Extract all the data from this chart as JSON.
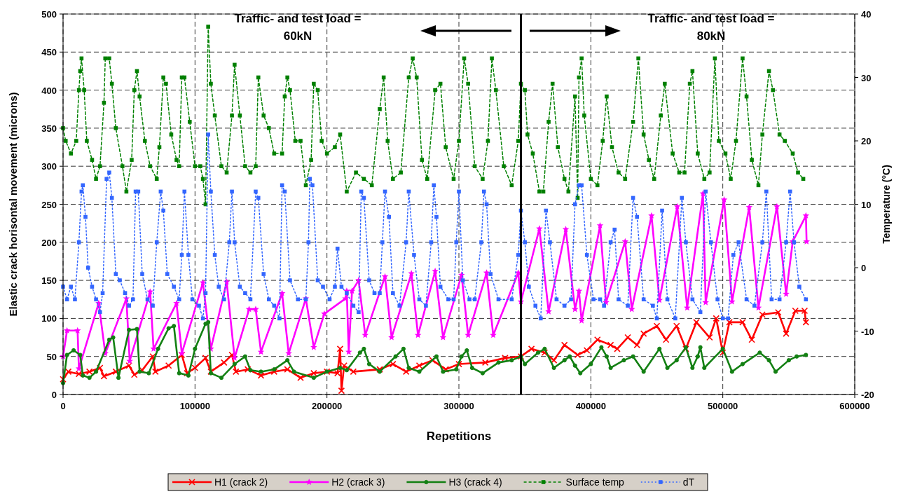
{
  "chart_data": {
    "type": "line",
    "xlabel": "Repetitions",
    "ylabel": "Elastic crack horisontal movement (microns)",
    "y2label": "Temperature (°C)",
    "xlim": [
      0,
      600000
    ],
    "xticks": [
      0,
      100000,
      200000,
      300000,
      400000,
      500000,
      600000
    ],
    "ylim": [
      0,
      500
    ],
    "yticks": [
      0,
      50,
      100,
      150,
      200,
      250,
      300,
      350,
      400,
      450,
      500
    ],
    "y2lim": [
      -20,
      40
    ],
    "y2ticks": [
      -20,
      -10,
      0,
      10,
      20,
      30,
      40
    ],
    "grid": true,
    "legend": "bottom",
    "ref_lines": [
      {
        "axis": "x",
        "value": 347000,
        "color": "#000000",
        "line_style": "solid"
      }
    ],
    "annotations": [
      "Traffic- and test load =\n60kN",
      "Traffic- and test load =\n80kN"
    ],
    "series": [
      {
        "name": "H1 (crack 2)",
        "color": "#ff0000",
        "marker": "cross",
        "line_style": "solid",
        "x": [
          0,
          4000,
          12000,
          20000,
          28000,
          31000,
          40000,
          50000,
          54000,
          60000,
          68000,
          70000,
          80000,
          90000,
          94000,
          100000,
          108000,
          112000,
          122000,
          128000,
          131000,
          140000,
          150000,
          160000,
          170000,
          180000,
          190000,
          200000,
          208000,
          210000,
          211000,
          213000,
          220000,
          240000,
          250000,
          260000,
          270000,
          280000,
          290000,
          300000,
          320000,
          335000,
          347000,
          355000,
          365000,
          372000,
          380000,
          390000,
          397000,
          405000,
          415000,
          420000,
          428000,
          435000,
          440000,
          450000,
          457000,
          465000,
          472000,
          480000,
          490000,
          495000,
          500000,
          505000,
          515000,
          522000,
          530000,
          542000,
          548000,
          555000,
          562000,
          563000
        ],
        "values": [
          20,
          30,
          27,
          30,
          35,
          24,
          30,
          38,
          26,
          32,
          50,
          30,
          38,
          52,
          28,
          35,
          48,
          30,
          42,
          52,
          30,
          33,
          25,
          30,
          33,
          22,
          28,
          30,
          28,
          60,
          5,
          38,
          30,
          33,
          40,
          30,
          38,
          45,
          33,
          40,
          42,
          48,
          50,
          60,
          55,
          45,
          65,
          52,
          58,
          72,
          65,
          60,
          75,
          65,
          80,
          90,
          72,
          90,
          60,
          95,
          75,
          100,
          55,
          95,
          95,
          72,
          105,
          108,
          80,
          110,
          110,
          95
        ]
      },
      {
        "name": "H2 (crack 3)",
        "color": "#ff00ff",
        "marker": "star",
        "line_style": "solid",
        "x": [
          0,
          3000,
          11000,
          12000,
          27000,
          32000,
          48000,
          50500,
          66000,
          68600,
          86000,
          90000,
          106000,
          112000,
          124000,
          130000,
          141000,
          146000,
          150000,
          166000,
          171000,
          184000,
          190000,
          198000,
          214000,
          215000,
          216500,
          219000,
          224000,
          229000,
          244000,
          249000,
          264000,
          269000,
          282000,
          288000,
          302000,
          307000,
          321000,
          326000,
          345000,
          347000,
          361000,
          368000,
          381000,
          388000,
          391000,
          393000,
          407000,
          411500,
          426000,
          431000,
          446000,
          452000,
          465500,
          473000,
          485000,
          487000,
          501000,
          507000,
          520000,
          527000,
          541000,
          548000,
          553000,
          563000,
          563500
        ],
        "values": [
          50,
          84,
          84,
          34,
          120,
          54,
          126,
          44,
          135,
          60,
          120,
          54,
          147,
          60,
          148,
          48,
          112,
          112,
          56,
          133,
          54,
          126,
          62,
          106,
          126,
          136,
          56,
          136,
          150,
          78,
          155,
          75,
          159,
          78,
          162,
          75,
          157,
          78,
          160,
          78,
          160,
          122,
          218,
          109,
          217,
          112,
          136,
          97,
          222,
          121,
          201,
          112,
          235,
          124,
          247,
          114,
          264,
          121,
          256,
          122,
          246,
          114,
          247,
          132,
          201,
          235,
          201
        ]
      },
      {
        "name": "H3 (crack 4)",
        "color": "#138013",
        "marker": "circle",
        "line_style": "solid",
        "x": [
          0,
          3000,
          8000,
          13000,
          15000,
          20000,
          25000,
          35000,
          38000,
          42000,
          50000,
          56000,
          58000,
          65000,
          72000,
          80000,
          84000,
          88000,
          95000,
          100000,
          108000,
          110000,
          112000,
          120000,
          130000,
          138000,
          142000,
          150000,
          160000,
          170000,
          175000,
          190000,
          200000,
          210000,
          215000,
          225000,
          228000,
          232000,
          240000,
          252000,
          258000,
          262000,
          270000,
          283000,
          288000,
          298000,
          302000,
          306000,
          310000,
          318000,
          330000,
          340000,
          347000,
          350000,
          360000,
          365000,
          372000,
          380000,
          384000,
          388000,
          392000,
          400000,
          408000,
          412000,
          415000,
          425000,
          432000,
          440000,
          452000,
          458000,
          465000,
          472000,
          477000,
          481000,
          483000,
          486000,
          500000,
          507000,
          515000,
          528000,
          535000,
          540000,
          550000,
          556000,
          563000
        ],
        "values": [
          15,
          52,
          58,
          52,
          25,
          22,
          30,
          72,
          75,
          22,
          85,
          86,
          30,
          28,
          60,
          87,
          90,
          28,
          25,
          60,
          93,
          95,
          28,
          22,
          40,
          50,
          32,
          30,
          33,
          45,
          30,
          22,
          30,
          35,
          32,
          55,
          60,
          40,
          30,
          50,
          60,
          35,
          30,
          50,
          30,
          33,
          50,
          58,
          35,
          28,
          42,
          45,
          50,
          40,
          55,
          60,
          35,
          45,
          50,
          38,
          28,
          40,
          62,
          50,
          35,
          45,
          50,
          30,
          60,
          35,
          45,
          62,
          35,
          50,
          62,
          35,
          60,
          30,
          40,
          55,
          45,
          30,
          45,
          50,
          52
        ]
      },
      {
        "name": "Surface temp",
        "color": "#008000",
        "marker": "square",
        "line_style": "dashed",
        "axis": "y2",
        "x": [
          0,
          2000,
          6000,
          10000,
          12000,
          13000,
          14000,
          16000,
          18000,
          22000,
          25000,
          28000,
          31000,
          32000,
          35000,
          37000,
          40000,
          45000,
          48000,
          52000,
          54000,
          56000,
          58000,
          62000,
          66000,
          71000,
          73000,
          76000,
          78000,
          82000,
          86000,
          88000,
          90000,
          92000,
          96000,
          100000,
          104000,
          106000,
          108000,
          110000,
          112000,
          115000,
          120000,
          124000,
          128000,
          130000,
          134000,
          138000,
          142000,
          146000,
          148000,
          152000,
          156000,
          160000,
          166000,
          168000,
          170000,
          172000,
          176000,
          180000,
          184000,
          188000,
          190000,
          193000,
          196000,
          200000,
          206000,
          210000,
          215000,
          222000,
          228000,
          234000,
          240000,
          243000,
          246000,
          250000,
          256000,
          262000,
          265000,
          268000,
          272000,
          276000,
          282000,
          286000,
          290000,
          296000,
          300000,
          304000,
          307000,
          312000,
          318000,
          322000,
          325000,
          328000,
          334000,
          340000,
          345000,
          347000,
          350000,
          352000,
          356000,
          361000,
          364000,
          368000,
          371000,
          375000,
          380000,
          383000,
          388000,
          390000,
          391000,
          393000,
          395000,
          400000,
          405000,
          409000,
          412000,
          416000,
          421000,
          426000,
          432000,
          436000,
          440000,
          444000,
          448000,
          453000,
          456000,
          462000,
          467000,
          471000,
          475000,
          477000,
          481000,
          486000,
          490000,
          494000,
          497000,
          502000,
          506000,
          510000,
          515000,
          518000,
          522000,
          527000,
          530000,
          535000,
          538000,
          543000,
          547000,
          553000,
          557000,
          561000
        ],
        "values": [
          22,
          20,
          18,
          20,
          28,
          31,
          33,
          28,
          20,
          17,
          14,
          16,
          26,
          33,
          33,
          29,
          22,
          16,
          12,
          17,
          28,
          31,
          27,
          20,
          16,
          14,
          19,
          30,
          29,
          21,
          17,
          16,
          30,
          30,
          23,
          16,
          16,
          14,
          10,
          38,
          29,
          24,
          16,
          15,
          24,
          32,
          24,
          16,
          15,
          16,
          30,
          24,
          22,
          18,
          18,
          27,
          30,
          28,
          20,
          20,
          13,
          17,
          29,
          28,
          20,
          18,
          19,
          21,
          12,
          15,
          14,
          13,
          25,
          30,
          20,
          14,
          15,
          30,
          33,
          30,
          17,
          14,
          28,
          29,
          19,
          14,
          20,
          33,
          29,
          16,
          14,
          20,
          33,
          28,
          16,
          13,
          20,
          29,
          28,
          21,
          18,
          12,
          12,
          23,
          29,
          19,
          14,
          12,
          27,
          11,
          30,
          33,
          24,
          14,
          13,
          20,
          27,
          19,
          15,
          14,
          23,
          33,
          21,
          17,
          14,
          24,
          29,
          18,
          15,
          15,
          29,
          31,
          18,
          14,
          15,
          33,
          20,
          18,
          14,
          20,
          33,
          27,
          17,
          13,
          21,
          31,
          28,
          21,
          20,
          18,
          15,
          14
        ]
      },
      {
        "name": "dT",
        "color": "#3366ff",
        "marker": "square",
        "line_style": "dotted",
        "axis": "y2",
        "x": [
          0,
          3000,
          6000,
          9000,
          12000,
          14000,
          15000,
          17000,
          19000,
          22000,
          25000,
          28000,
          30000,
          33000,
          35000,
          37000,
          40000,
          43000,
          47000,
          50000,
          53000,
          55000,
          57000,
          60000,
          64000,
          68000,
          71000,
          74000,
          76000,
          79000,
          84000,
          88000,
          90000,
          92000,
          95000,
          98000,
          103000,
          106000,
          108000,
          110000,
          112000,
          115000,
          118000,
          122000,
          126000,
          128000,
          130000,
          134000,
          138000,
          142000,
          146000,
          148000,
          152000,
          156000,
          160000,
          164000,
          166000,
          168000,
          172000,
          178000,
          184000,
          186000,
          187000,
          189000,
          193000,
          197000,
          202000,
          206000,
          208000,
          211000,
          215000,
          220000,
          224000,
          226000,
          228000,
          232000,
          236000,
          240000,
          242000,
          244000,
          247000,
          250000,
          255000,
          260000,
          262000,
          266000,
          270000,
          275000,
          279000,
          281000,
          283000,
          286000,
          292000,
          296000,
          298000,
          300000,
          303000,
          308000,
          312000,
          317000,
          319000,
          321000,
          324000,
          330000,
          340000,
          345000,
          347000,
          350000,
          353000,
          358000,
          362000,
          366000,
          369000,
          374000,
          380000,
          385000,
          388000,
          391000,
          393000,
          397000,
          402000,
          407000,
          410000,
          415000,
          418000,
          421000,
          428000,
          432000,
          435000,
          440000,
          447000,
          450000,
          454000,
          458000,
          464000,
          469000,
          472000,
          477000,
          483000,
          487000,
          491000,
          496000,
          500000,
          504000,
          508000,
          512000,
          518000,
          524000,
          530000,
          533000,
          537000,
          543000,
          548000,
          551000,
          554000,
          558000,
          563000
        ],
        "values": [
          -3,
          -5,
          -3,
          -5,
          4,
          12,
          13,
          8,
          0,
          -3,
          -5,
          -7,
          -4,
          14,
          15,
          11,
          -1,
          -2,
          -4,
          -6,
          -5,
          12,
          12,
          -1,
          -5,
          -6,
          4,
          12,
          9,
          -1,
          -3,
          -5,
          2,
          12,
          2,
          -5,
          -6,
          -8,
          -4,
          21,
          12,
          2,
          -3,
          -5,
          4,
          12,
          4,
          -3,
          -4,
          -5,
          12,
          11,
          -1,
          -5,
          -6,
          -8,
          13,
          12,
          -2,
          -5,
          -5,
          4,
          14,
          13,
          -2,
          -3,
          -5,
          -3,
          3,
          -3,
          -4,
          -6,
          -7,
          12,
          11,
          -2,
          -4,
          -4,
          4,
          12,
          8,
          -4,
          -6,
          4,
          12,
          2,
          -5,
          -6,
          4,
          13,
          8,
          -3,
          -5,
          -5,
          4,
          12,
          -2,
          -5,
          -5,
          4,
          12,
          10,
          -1,
          -5,
          -5,
          2,
          9,
          4,
          -3,
          -6,
          -8,
          9,
          4,
          -5,
          -6,
          -5,
          10,
          13,
          13,
          2,
          -5,
          -5,
          -6,
          4,
          6,
          -5,
          -6,
          11,
          8,
          -5,
          -6,
          -8,
          9,
          -5,
          -8,
          11,
          4,
          -5,
          -7,
          12,
          4,
          -5,
          -8,
          -8,
          2,
          4,
          -5,
          -6,
          4,
          12,
          -5,
          -5,
          4,
          12,
          4,
          -3,
          -5
        ]
      }
    ]
  }
}
